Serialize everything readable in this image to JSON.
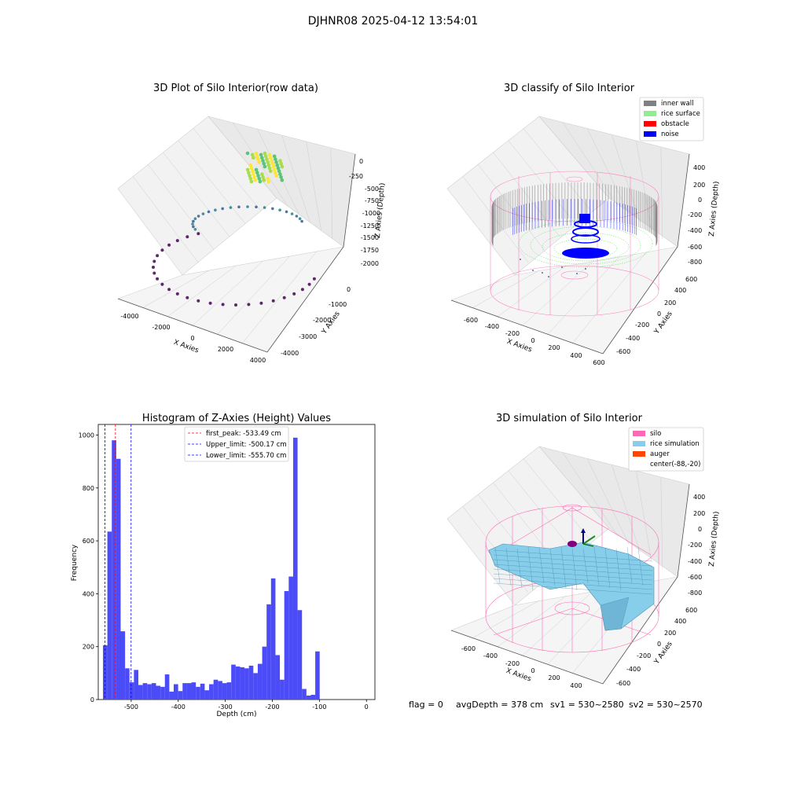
{
  "figure": {
    "suptitle": "DJHNR08 2025-04-12 13:54:01",
    "status_line": {
      "flag": "flag = 0",
      "avg_depth": "avgDepth = 378 cm",
      "sv1": "sv1 = 530~2580",
      "sv2": "sv2 = 530~2570"
    }
  },
  "colors": {
    "histogram_bar": "#4b4bf7",
    "first_peak_line": "#ff0000",
    "limit_line": "#0000ff",
    "inner_wall": "#808080",
    "rice_surface": "#90ee90",
    "obstacle": "#ff0000",
    "noise": "#0000ff",
    "silo": "#ff69b4",
    "rice_simulation": "#87ceeb",
    "auger": "#ff4500"
  },
  "chart_data": [
    {
      "type": "scatter",
      "title": "3D Plot of Silo Interior(row data)",
      "xlabel": "X Axies",
      "ylabel": "Y Axies",
      "zlabel": "Z Axies (Depth)",
      "x_ticks": [
        "-4000",
        "-2000",
        "0",
        "2000",
        "4000"
      ],
      "y_ticks": [
        "-4000",
        "-3000",
        "-2000",
        "-1000",
        "0"
      ],
      "z_ticks": [
        "0",
        "-250",
        "-500",
        "-750",
        "-1000",
        "-1250",
        "-1500",
        "-1750",
        "-2000"
      ],
      "colormap": "viridis"
    },
    {
      "type": "scatter",
      "title": "3D classify of Silo Interior",
      "xlabel": "X Axies",
      "ylabel": "Y Axies",
      "zlabel": "Z Axies (Depth)",
      "x_ticks": [
        "-600",
        "-400",
        "-200",
        "0",
        "200",
        "400",
        "600"
      ],
      "y_ticks": [
        "-600",
        "-400",
        "-200",
        "0",
        "200",
        "400",
        "600"
      ],
      "z_ticks": [
        "400",
        "200",
        "0",
        "-200",
        "-400",
        "-600",
        "-800"
      ],
      "legend": [
        "inner wall",
        "rice surface",
        "obstacle",
        "noise"
      ],
      "legend_position": "top-right"
    },
    {
      "type": "bar",
      "title": "Histogram of Z-Axies (Height) Values",
      "xlabel": "Depth (cm)",
      "ylabel": "Frequency",
      "xlim": [
        -570,
        18
      ],
      "ylim": [
        0,
        1040
      ],
      "x_ticks": [
        -500,
        -400,
        -300,
        -200,
        -100,
        0
      ],
      "y_ticks": [
        0,
        200,
        400,
        600,
        800,
        1000
      ],
      "bin_start": -560,
      "bin_width": 9.4,
      "values": [
        205,
        635,
        980,
        910,
        258,
        118,
        65,
        112,
        55,
        62,
        58,
        62,
        52,
        48,
        95,
        30,
        58,
        32,
        62,
        62,
        65,
        48,
        60,
        35,
        58,
        75,
        70,
        62,
        65,
        132,
        125,
        122,
        118,
        128,
        100,
        135,
        200,
        360,
        458,
        168,
        75,
        410,
        465,
        990,
        338,
        40,
        15,
        18,
        182
      ],
      "vlines": [
        {
          "label": "first_peak: -533.49 cm",
          "x": -533.49,
          "color": "#ff0000"
        },
        {
          "label": "Upper_limit: -500.17 cm",
          "x": -500.17,
          "color": "#0000ff"
        },
        {
          "label": "Lower_limit: -555.70 cm",
          "x": -555.7,
          "color": "#0000ff"
        }
      ],
      "legend_position": "top-center"
    },
    {
      "type": "surface",
      "title": "3D simulation of Silo Interior",
      "xlabel": "X Axies",
      "ylabel": "Y Axies",
      "zlabel": "Z Axies (Depth)",
      "x_ticks": [
        "-600",
        "-400",
        "-200",
        "0",
        "200",
        "400"
      ],
      "y_ticks": [
        "-600",
        "-400",
        "-200",
        "0",
        "200",
        "400",
        "600"
      ],
      "z_ticks": [
        "400",
        "200",
        "0",
        "-200",
        "-400",
        "-600",
        "-800"
      ],
      "legend": [
        "silo",
        "rice simulation",
        "auger",
        "center(-88,-20)"
      ],
      "legend_position": "top-right"
    }
  ]
}
